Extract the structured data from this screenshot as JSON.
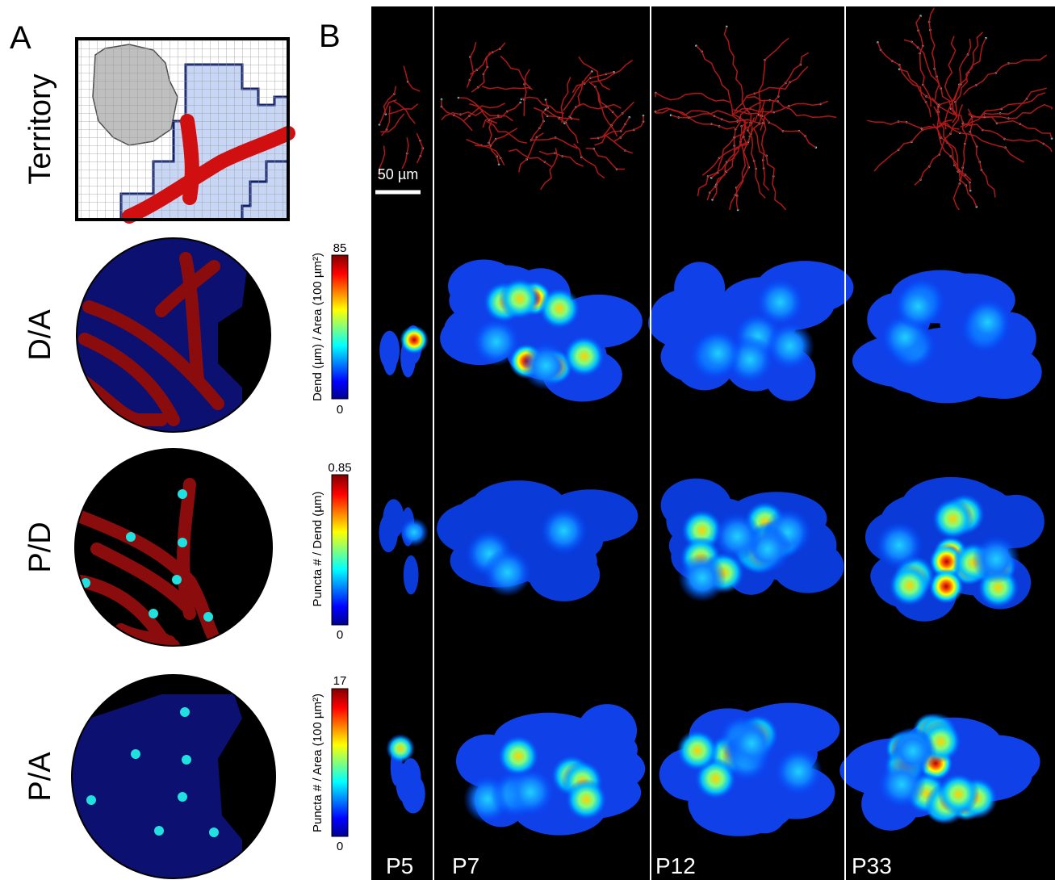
{
  "panel_a": {
    "label": "A",
    "rows": [
      "Territory",
      "D/A",
      "P/D",
      "P/A"
    ]
  },
  "panel_b": {
    "label": "B",
    "scale_bar": "50 µm",
    "columns": [
      "P5",
      "P7",
      "P12",
      "P33"
    ],
    "colorbars": [
      {
        "label": "Dend (µm) / Area (100 µm²)",
        "max": 85,
        "min": 0
      },
      {
        "label": "Puncta # / Dend (µm)",
        "max": 0.85,
        "min": 0
      },
      {
        "label": "Puncta # / Area (100 µm²)",
        "max": 17,
        "min": 0
      }
    ]
  }
}
